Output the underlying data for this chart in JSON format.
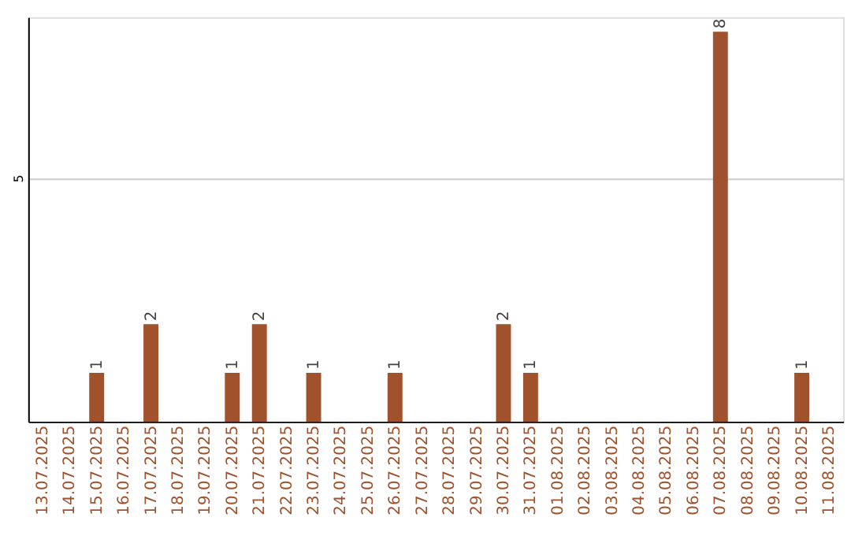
{
  "chart_data": {
    "type": "bar",
    "categories": [
      "13.07.2025",
      "14.07.2025",
      "15.07.2025",
      "16.07.2025",
      "17.07.2025",
      "18.07.2025",
      "19.07.2025",
      "20.07.2025",
      "21.07.2025",
      "22.07.2025",
      "23.07.2025",
      "24.07.2025",
      "25.07.2025",
      "26.07.2025",
      "27.07.2025",
      "28.07.2025",
      "29.07.2025",
      "30.07.2025",
      "31.07.2025",
      "01.08.2025",
      "02.08.2025",
      "03.08.2025",
      "04.08.2025",
      "05.08.2025",
      "06.08.2025",
      "07.08.2025",
      "08.08.2025",
      "09.08.2025",
      "10.08.2025",
      "11.08.2025"
    ],
    "values": [
      null,
      null,
      1,
      null,
      2,
      null,
      null,
      1,
      2,
      null,
      1,
      null,
      null,
      1,
      null,
      null,
      null,
      2,
      1,
      null,
      null,
      null,
      null,
      null,
      null,
      8,
      null,
      null,
      1,
      null
    ],
    "color": "#a0522d",
    "ylim": [
      0,
      8.3
    ],
    "yticks": [
      5
    ],
    "grid": "y",
    "data_labels": true
  }
}
